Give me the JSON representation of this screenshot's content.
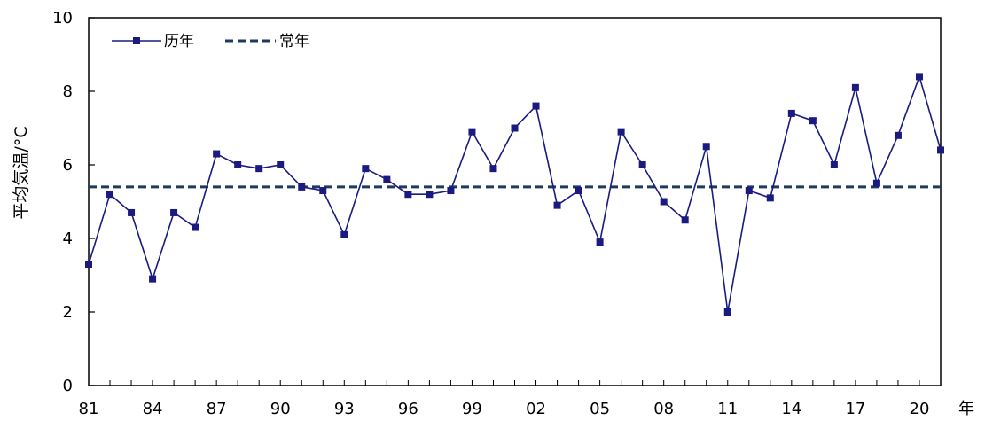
{
  "chart_data": {
    "type": "line",
    "title": "",
    "xlabel": "年",
    "ylabel": "平均気温/°C",
    "ylim": [
      0,
      10
    ],
    "yticks": [
      0,
      2,
      4,
      6,
      8,
      10
    ],
    "x": [
      "81",
      "82",
      "83",
      "84",
      "85",
      "86",
      "87",
      "88",
      "89",
      "90",
      "91",
      "92",
      "93",
      "94",
      "95",
      "96",
      "97",
      "98",
      "99",
      "00",
      "01",
      "02",
      "03",
      "04",
      "05",
      "06",
      "07",
      "08",
      "09",
      "10",
      "11",
      "12",
      "13",
      "14",
      "15",
      "16",
      "17",
      "18",
      "19",
      "20",
      "21"
    ],
    "xtick_labels": [
      "81",
      "84",
      "87",
      "90",
      "93",
      "96",
      "99",
      "02",
      "05",
      "08",
      "11",
      "14",
      "17",
      "20"
    ],
    "grid": false,
    "legend_position": "top-left",
    "series": [
      {
        "name": "历年",
        "style": "line-square-markers",
        "color": "#1a1a80",
        "values": [
          3.3,
          5.2,
          4.7,
          2.9,
          4.7,
          4.3,
          6.3,
          6.0,
          5.9,
          6.0,
          5.4,
          5.3,
          4.1,
          5.9,
          5.6,
          5.2,
          5.2,
          5.3,
          6.9,
          5.9,
          7.0,
          7.6,
          4.9,
          5.3,
          3.9,
          6.9,
          6.0,
          5.0,
          4.5,
          6.5,
          2.0,
          5.3,
          5.1,
          7.4,
          7.2,
          6.0,
          8.1,
          5.5,
          6.8,
          8.4,
          6.4
        ]
      },
      {
        "name": "常年",
        "style": "dashed",
        "color": "#1f3a5f",
        "value": 5.4
      }
    ]
  }
}
